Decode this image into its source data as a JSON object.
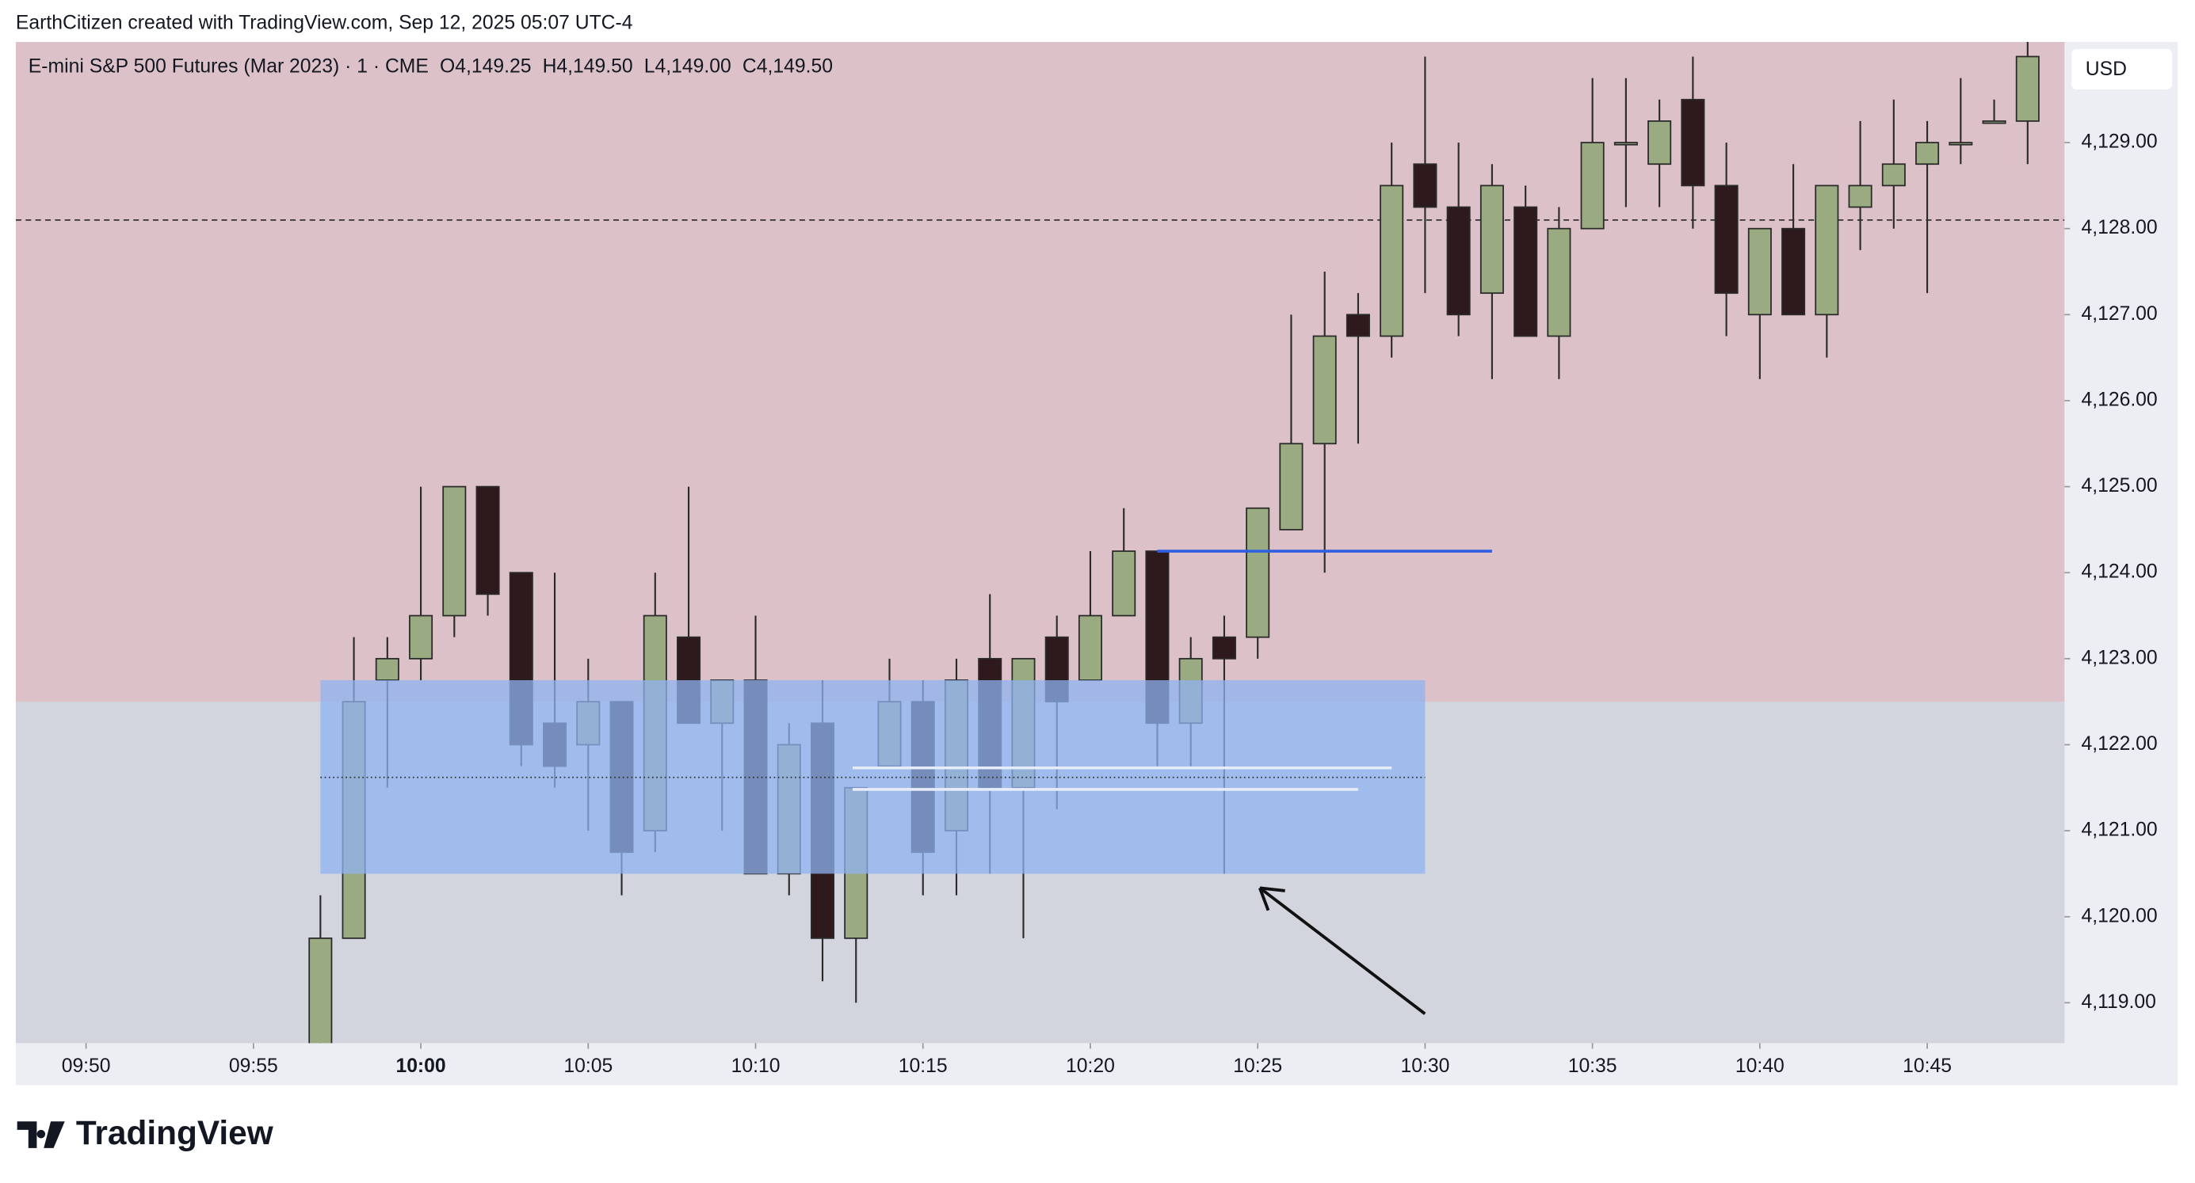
{
  "header": {
    "credit": "EarthCitizen created with TradingView.com, Sep 12, 2025 05:07 UTC-4",
    "brand": "TradingView"
  },
  "chart_data": {
    "type": "candlestick",
    "title": "E-mini S&P 500 Futures (Mar 2023) · 1 · CME",
    "ohlc_legend": [
      "O4,149.25",
      "H4,149.50",
      "L4,149.00",
      "C4,149.50"
    ],
    "currency": "USD",
    "x": [
      597,
      598,
      599,
      600,
      601,
      602,
      603,
      604,
      605,
      606,
      607,
      608,
      609,
      610,
      611,
      612,
      613,
      614,
      615,
      616,
      617,
      618,
      619,
      620,
      621,
      622,
      623,
      624,
      625,
      626,
      627,
      628,
      629,
      630,
      631,
      632,
      633,
      634,
      635,
      636,
      637,
      638,
      639,
      640,
      641,
      642,
      643,
      644,
      645,
      646,
      647,
      648
    ],
    "open": [
      4118.25,
      4119.75,
      4122.75,
      4123,
      4123.5,
      4125,
      4124,
      4122.25,
      4122,
      4122.5,
      4121,
      4123.25,
      4122.25,
      4122.75,
      4120.5,
      4122.25,
      4119.75,
      4121.75,
      4122.5,
      4121,
      4123,
      4121.5,
      4123.25,
      4122.75,
      4123.5,
      4124.25,
      4122.25,
      4123.25,
      4123.25,
      4124.5,
      4125.5,
      4127,
      4126.75,
      4128.75,
      4128.25,
      4127.25,
      4128.25,
      4126.75,
      4128,
      4129,
      4128.75,
      4129.5,
      4128.5,
      4127,
      4128,
      4127,
      4128.25,
      4128.5,
      4128.75,
      4129,
      4129.25,
      4129.25
    ],
    "high": [
      4120.25,
      4123.25,
      4123.25,
      4125,
      4125,
      4125,
      4124,
      4124,
      4123,
      4122.5,
      4124,
      4125,
      4122.75,
      4123.5,
      4122.25,
      4122.75,
      4121.5,
      4123,
      4122.75,
      4123,
      4123.75,
      4123,
      4123.5,
      4124.25,
      4124.75,
      4124.25,
      4123.25,
      4123.5,
      4124.75,
      4127,
      4127.5,
      4127.25,
      4129,
      4130,
      4129,
      4128.75,
      4128.5,
      4128.25,
      4129.75,
      4129.75,
      4129.5,
      4130,
      4129,
      4128,
      4128.75,
      4128.5,
      4129.25,
      4129.5,
      4129.25,
      4129.75,
      4129.5,
      4130.25
    ],
    "low": [
      4118,
      4119.75,
      4121.5,
      4122.75,
      4123.25,
      4123.5,
      4121.75,
      4121.5,
      4121,
      4120.25,
      4120.75,
      4122.25,
      4121,
      4120.5,
      4120.25,
      4119.25,
      4119,
      4121.75,
      4120.25,
      4120.25,
      4120.5,
      4119.75,
      4121.25,
      4122.75,
      4123.5,
      4121.75,
      4121.75,
      4120.5,
      4123,
      4124.5,
      4124,
      4125.5,
      4126.5,
      4127.25,
      4126.75,
      4126.25,
      4126.75,
      4126.25,
      4128,
      4128.25,
      4128.25,
      4128,
      4126.75,
      4126.25,
      4127,
      4126.5,
      4127.75,
      4128,
      4127.25,
      4128.75,
      4129.25,
      4128.75
    ],
    "close": [
      4119.75,
      4122.5,
      4123,
      4123.5,
      4125,
      4123.75,
      4122,
      4121.75,
      4122.5,
      4120.75,
      4123.5,
      4122.25,
      4122.75,
      4120.5,
      4122,
      4119.75,
      4121.5,
      4122.5,
      4120.75,
      4122.75,
      4121.5,
      4123,
      4122.5,
      4123.5,
      4124.25,
      4122.25,
      4123,
      4123,
      4124.75,
      4125.5,
      4126.75,
      4126.75,
      4128.5,
      4128.25,
      4127,
      4128.5,
      4126.75,
      4128,
      4129,
      4129,
      4129.25,
      4128.5,
      4127.25,
      4128,
      4127,
      4128.5,
      4128.5,
      4128.75,
      4129,
      4129,
      4129.25,
      4130
    ],
    "up_color": "#9aab82",
    "down_color": "#2e1a1c",
    "xlim": [
      587.9,
      649.1
    ],
    "ylim": [
      4118.53,
      4130.17
    ],
    "xticks": [
      {
        "value": 590,
        "label": "09:50"
      },
      {
        "value": 595,
        "label": "09:55"
      },
      {
        "value": 600,
        "label": "10:00"
      },
      {
        "value": 605,
        "label": "10:05"
      },
      {
        "value": 610,
        "label": "10:10"
      },
      {
        "value": 615,
        "label": "10:15"
      },
      {
        "value": 620,
        "label": "10:20"
      },
      {
        "value": 625,
        "label": "10:25"
      },
      {
        "value": 630,
        "label": "10:30"
      },
      {
        "value": 635,
        "label": "10:35"
      },
      {
        "value": 640,
        "label": "10:40"
      },
      {
        "value": 645,
        "label": "10:45"
      }
    ],
    "yticks": [
      {
        "value": 4119,
        "label": "4,119.00"
      },
      {
        "value": 4120,
        "label": "4,120.00"
      },
      {
        "value": 4121,
        "label": "4,121.00"
      },
      {
        "value": 4122,
        "label": "4,122.00"
      },
      {
        "value": 4123,
        "label": "4,123.00"
      },
      {
        "value": 4124,
        "label": "4,124.00"
      },
      {
        "value": 4125,
        "label": "4,125.00"
      },
      {
        "value": 4126,
        "label": "4,126.00"
      },
      {
        "value": 4127,
        "label": "4,127.00"
      },
      {
        "value": 4128,
        "label": "4,128.00"
      },
      {
        "value": 4129,
        "label": "4,129.00"
      }
    ],
    "supply_zone": {
      "y": [
        4122.5,
        4130.17
      ],
      "color": "#dcc1c8"
    },
    "demand_zone": {
      "x": [
        597,
        630
      ],
      "y": [
        4120.5,
        4122.75
      ],
      "color": "#8fb3f0"
    },
    "midline": 4121.62,
    "current_price_line": 4128.1,
    "level_line": {
      "x": [
        622,
        632
      ],
      "y": 4124.25,
      "color": "#2f5fe0"
    },
    "light_lines": [
      {
        "x": [
          612.9,
          629
        ],
        "y": 4121.73
      },
      {
        "x": [
          612.9,
          628
        ],
        "y": 4121.48
      }
    ]
  }
}
